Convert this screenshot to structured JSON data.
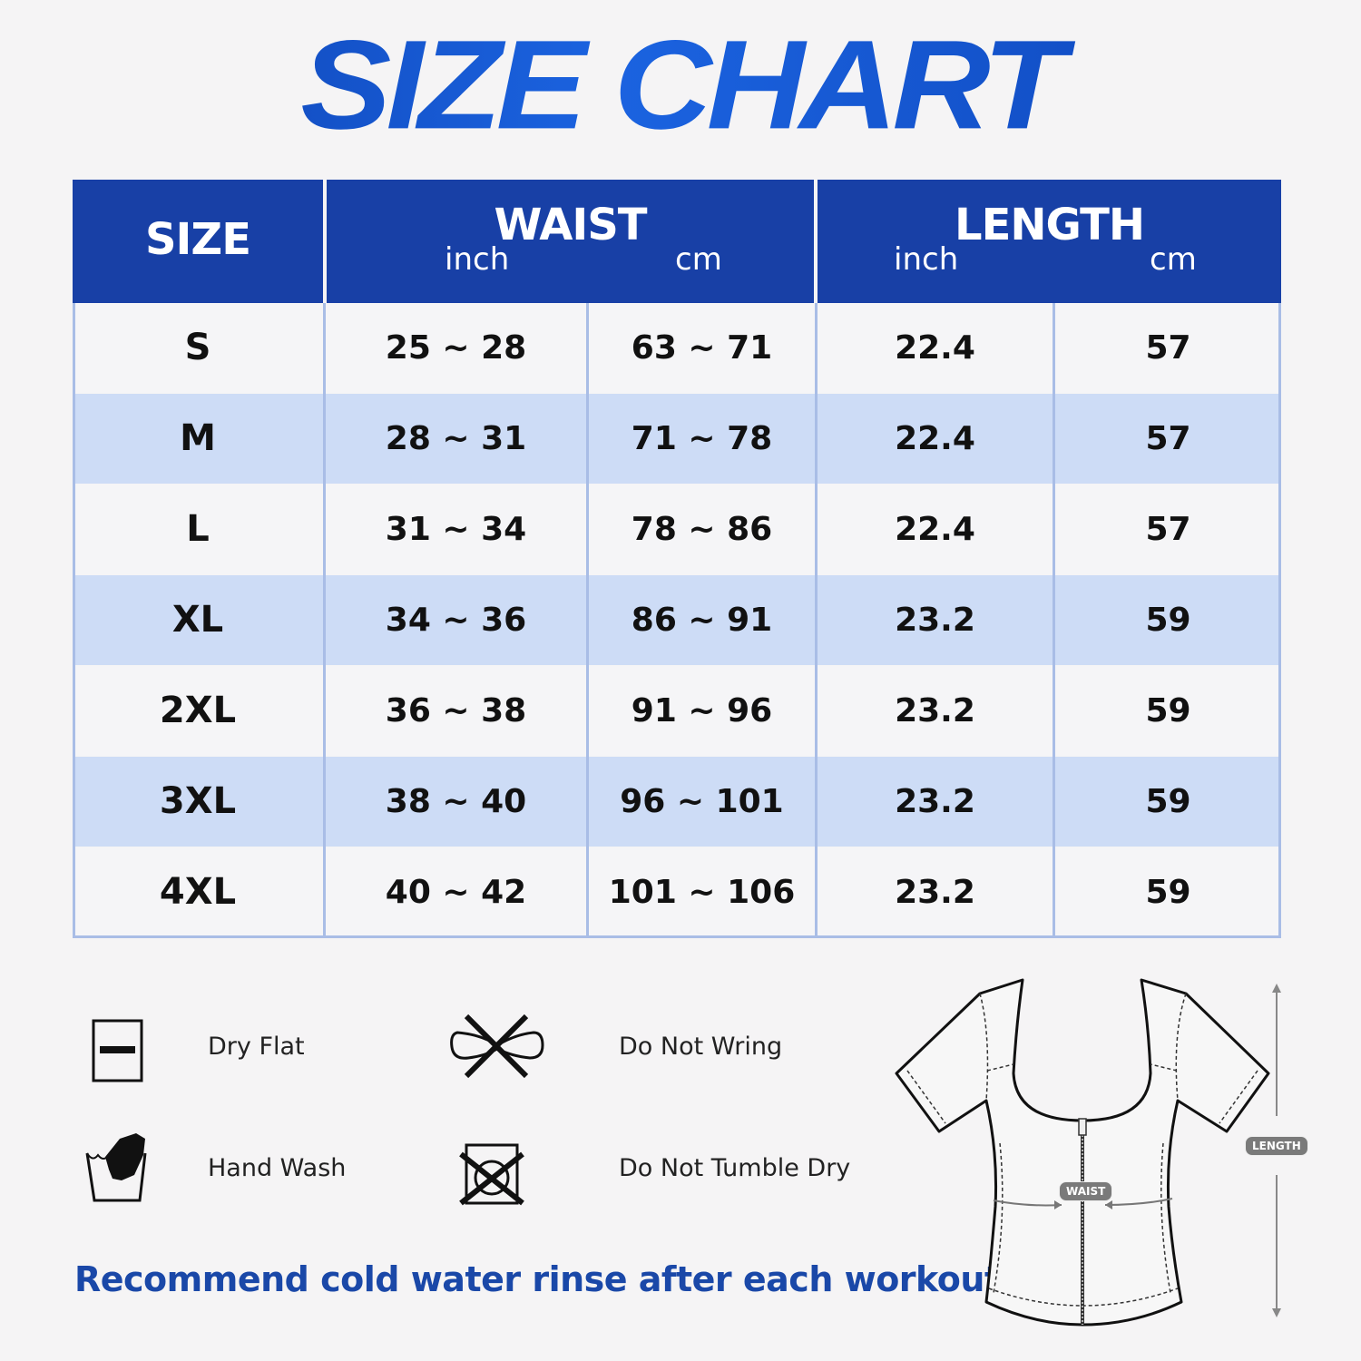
{
  "title": "SIZE CHART",
  "table": {
    "headers": {
      "size": "SIZE",
      "waist": "WAIST",
      "waist_inch": "inch",
      "waist_cm": "cm",
      "length": "LENGTH",
      "length_inch": "inch",
      "length_cm": "cm"
    },
    "rows": [
      {
        "size": "S",
        "waist_inch": "25 ~ 28",
        "waist_cm": "63 ~ 71",
        "length_inch": "22.4",
        "length_cm": "57"
      },
      {
        "size": "M",
        "waist_inch": "28 ~ 31",
        "waist_cm": "71 ~ 78",
        "length_inch": "22.4",
        "length_cm": "57"
      },
      {
        "size": "L",
        "waist_inch": "31 ~ 34",
        "waist_cm": "78 ~ 86",
        "length_inch": "22.4",
        "length_cm": "57"
      },
      {
        "size": "XL",
        "waist_inch": "34 ~ 36",
        "waist_cm": "86 ~ 91",
        "length_inch": "23.2",
        "length_cm": "59"
      },
      {
        "size": "2XL",
        "waist_inch": "36 ~ 38",
        "waist_cm": "91 ~ 96",
        "length_inch": "23.2",
        "length_cm": "59"
      },
      {
        "size": "3XL",
        "waist_inch": "38 ~ 40",
        "waist_cm": "96 ~ 101",
        "length_inch": "23.2",
        "length_cm": "59"
      },
      {
        "size": "4XL",
        "waist_inch": "40 ~ 42",
        "waist_cm": "101 ~ 106",
        "length_inch": "23.2",
        "length_cm": "59"
      }
    ]
  },
  "care": [
    {
      "icon": "dry-flat-icon",
      "label": "Dry Flat"
    },
    {
      "icon": "do-not-wring-icon",
      "label": "Do Not Wring"
    },
    {
      "icon": "hand-wash-icon",
      "label": "Hand Wash"
    },
    {
      "icon": "do-not-tumble-dry-icon",
      "label": "Do Not Tumble Dry"
    }
  ],
  "note": "Recommend cold water rinse after each workout.",
  "diagram": {
    "waist_label": "WAIST",
    "length_label": "LENGTH"
  },
  "colors": {
    "header": "#1840a6",
    "row_alt": "#cddcf6",
    "row": "#f5f5f7",
    "title": "#1350c8",
    "border": "#a9bde6"
  }
}
